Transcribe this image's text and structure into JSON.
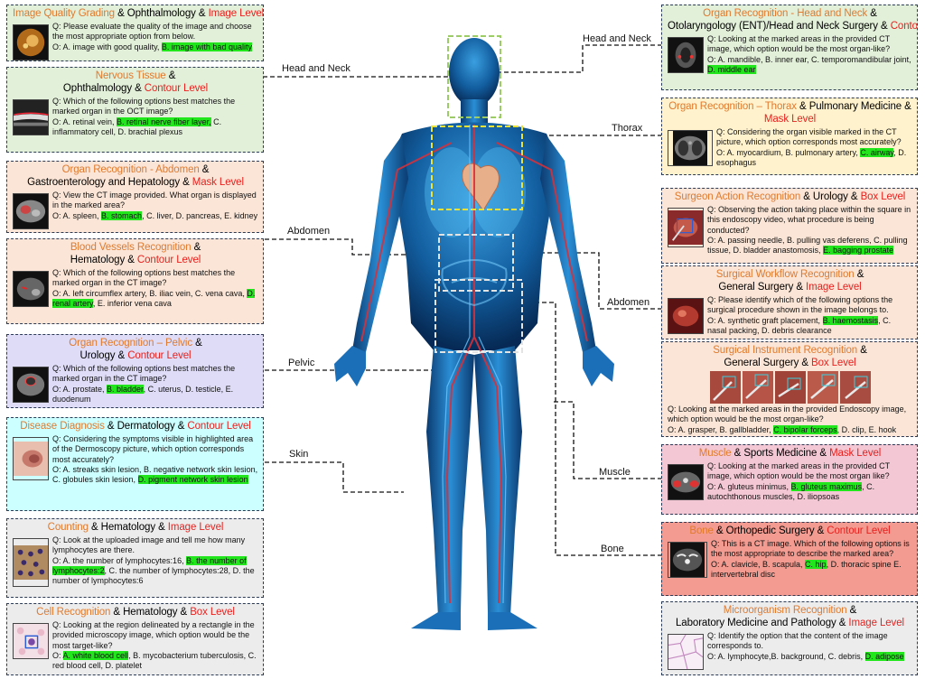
{
  "colors": {
    "task": "#e07a2e",
    "level": "#e8211e",
    "answer_highlight": "#22e61c",
    "panel_green": "#e2efd9",
    "panel_peach": "#fbe5d6",
    "panel_lavender": "#dedcf7",
    "panel_cyan": "#ccffff",
    "panel_gray": "#ececec",
    "panel_yellow": "#fff2cc",
    "panel_pink": "#f4c7d4",
    "panel_red": "#f39b90"
  },
  "regions": {
    "head_neck_left": "Head and Neck",
    "head_neck_right": "Head and Neck",
    "thorax": "Thorax",
    "abdomen_left": "Abdomen",
    "abdomen_right": "Abdomen",
    "pelvic": "Pelvic",
    "skin": "Skin",
    "muscle": "Muscle",
    "bone": "Bone"
  },
  "panels": {
    "image_quality": {
      "task": "Image Quality Grading",
      "amp1": " & ",
      "dept": "Ophthalmology",
      "amp2": " & ",
      "level": "Image Level",
      "question": "Q: Please evaluate the quality of the image and choose the most appropriate option from below.",
      "opt_a": "O: A. image with good quality, ",
      "opt_correct": "B. image with bad quality",
      "opt_rest": ""
    },
    "nervous_tissue": {
      "task": "Nervous Tissue",
      "amp1": " &",
      "dept": "Ophthalmology",
      "amp2": " & ",
      "level": "Contour Level",
      "question": "Q: Which of the following options best matches the marked organ in the OCT image?",
      "opt_a": "O: A. retinal vein, ",
      "opt_correct": "B. retinal nerve fiber layer,",
      "opt_rest": " C. inflammatory cell, D. brachial plexus"
    },
    "organ_abdomen": {
      "task": "Organ Recognition - Abdomen",
      "amp1": " &",
      "dept": "Gastroenterology and Hepatology",
      "amp2": " & ",
      "level": "Mask Level",
      "question": "Q: View the CT image provided. What organ is displayed in the marked area?",
      "opt_a": "O: A. spleen, ",
      "opt_correct": "B. stomach",
      "opt_rest": ", C. liver, D. pancreas, E. kidney"
    },
    "blood_vessels": {
      "task": "Blood Vessels Recognition",
      "amp1": " &",
      "dept": "Hematology",
      "amp2": " & ",
      "level": "Contour Level",
      "question": "Q: Which of the following options best matches the marked organ in the CT image?",
      "opt_a": "O: A. left circumflex artery, B. iliac vein, C. vena cava,",
      "opt_correct": "D. renal artery",
      "opt_rest": ", E. inferior vena cava"
    },
    "organ_pelvic": {
      "task": "Organ Recognition – Pelvic",
      "amp1": " &",
      "dept": "Urology",
      "amp2": " & ",
      "level": "Contour Level",
      "question": "Q: Which of the following options best matches the marked organ in the CT image?",
      "opt_a": "O: A. prostate, ",
      "opt_correct": "B. bladder",
      "opt_rest": ", C. uterus, D. testicle, E. duodenum"
    },
    "disease_diagnosis": {
      "task": "Disease Diagnosis",
      "amp1": " & ",
      "dept": "Dermatology",
      "amp2": " & ",
      "level": "Contour Level",
      "question": "Q: Considering the symptoms visible in highlighted area of the Dermoscopy picture, which option corresponds most accurately?",
      "opt_a": "O: A. streaks skin lesion, B. negative network skin lesion, C. globules skin lesion, ",
      "opt_correct": "D. pigment network skin lesion",
      "opt_rest": ""
    },
    "counting": {
      "task": "Counting",
      "amp1": " & ",
      "dept": "Hematology",
      "amp2": " & ",
      "level": "Image Level",
      "question": "Q: Look at the uploaded image and tell me how many lymphocytes are there.",
      "opt_a": "O: A. the number of lymphocytes:16, ",
      "opt_correct": "B. the number of lymphocytes:2",
      "opt_rest": ", C. the number of lymphocytes:28, D. the number of lymphocytes:6"
    },
    "cell_recognition": {
      "task": "Cell Recognition",
      "amp1": " & ",
      "dept": "Hematology",
      "amp2": " & ",
      "level": "Box Level",
      "question": "Q: Looking at the region delineated by a rectangle in the provided microscopy image, which option would be the most target-like?",
      "opt_a": "O: ",
      "opt_correct": "A. white blood cell",
      "opt_rest": ", B. mycobacterium tuberculosis, C. red blood cell, D. platelet"
    },
    "organ_head_neck": {
      "task": "Organ Recognition - Head and Neck",
      "amp1": " & ",
      "dept": "Otolaryngology (ENT)/Head and Neck Surgery",
      "amp2": " & ",
      "level": "Contour Level",
      "question": "Q: Looking at the marked areas in the provided CT image, which option would be the most organ-like?",
      "opt_a": "O: A. mandible, B. inner ear, C. temporomandibular joint, ",
      "opt_correct": "D. middle ear",
      "opt_rest": ""
    },
    "organ_thorax": {
      "task": "Organ Recognition – Thorax",
      "amp1": " & ",
      "dept": "Pulmonary Medicine",
      "amp2": " & ",
      "level": "Mask Level",
      "question": "Q: Considering the organ visible marked in the CT picture, which option corresponds most accurately?",
      "opt_a": "O: A. myocardium, B. pulmonary artery, ",
      "opt_correct": "C. airway",
      "opt_rest": ", D. esophagus"
    },
    "surgeon_action": {
      "task": "Surgeon Action Recognition",
      "amp1": " & ",
      "dept": "Urology",
      "amp2": " & ",
      "level": "Box Level",
      "question": "Q: Observing the action taking place within the square in this endoscopy video, what procedure is being conducted?",
      "opt_a": "O: A. passing needle, B. pulling vas deferens, C. pulling tissue, D. bladder anastomosis, ",
      "opt_correct": "E. bagging prostate",
      "opt_rest": ""
    },
    "surgical_workflow": {
      "task": "Surgical Workflow Recognition",
      "amp1": " &",
      "dept": "General Surgery",
      "amp2": " & ",
      "level": "Image Level",
      "question": "Q: Please identify which of the following options the surgical procedure shown in the image belongs to.",
      "opt_a": "O: A. synthetic graft placement, ",
      "opt_correct": "B. haemostasis",
      "opt_rest": ", C. nasal packing, D. debris clearance"
    },
    "surgical_instrument": {
      "task": "Surgical Instrument Recognition",
      "amp1": " &",
      "dept": "General Surgery",
      "amp2": " & ",
      "level": "Box Level",
      "question": "Q: Looking at the marked areas in the provided Endoscopy image, which option would be the most organ-like?",
      "opt_a": "O: A. grasper, B. gallbladder, ",
      "opt_correct": "C. bipolar forceps",
      "opt_rest": ", D. clip, E. hook"
    },
    "muscle": {
      "task": "Muscle",
      "amp1": " & ",
      "dept": "Sports Medicine",
      "amp2": " & ",
      "level": "Mask Level",
      "question": "Q: Looking at the marked areas in the provided CT image, which option would be the most organ like?",
      "opt_a": "O: A. gluteus minimus, ",
      "opt_correct": "B. gluteus maximus",
      "opt_rest": ", C. autochthonous muscles, D. iliopsoas"
    },
    "bone": {
      "task": "Bone",
      "amp1": " & ",
      "dept": "Orthopedic Surgery",
      "amp2": " & ",
      "level": "Contour Level",
      "question": "Q: This is a CT image. Which of the following options is the most appropriate to describe the marked area?",
      "opt_a": "O: A. clavicle, B. scapula, ",
      "opt_correct": "C. hip",
      "opt_rest": ", D. thoracic spine E. intervertebral disc"
    },
    "microorganism": {
      "task": "Microorganism Recognition",
      "amp1": " &",
      "dept": "Laboratory Medicine and Pathology",
      "amp2": " & ",
      "level": "Image Level",
      "question": "Q: Identify the option that the content of the image corresponds to.",
      "opt_a": "O: A. lymphocyte,B. background, C. debris, ",
      "opt_correct": "D. adipose",
      "opt_rest": ""
    }
  }
}
